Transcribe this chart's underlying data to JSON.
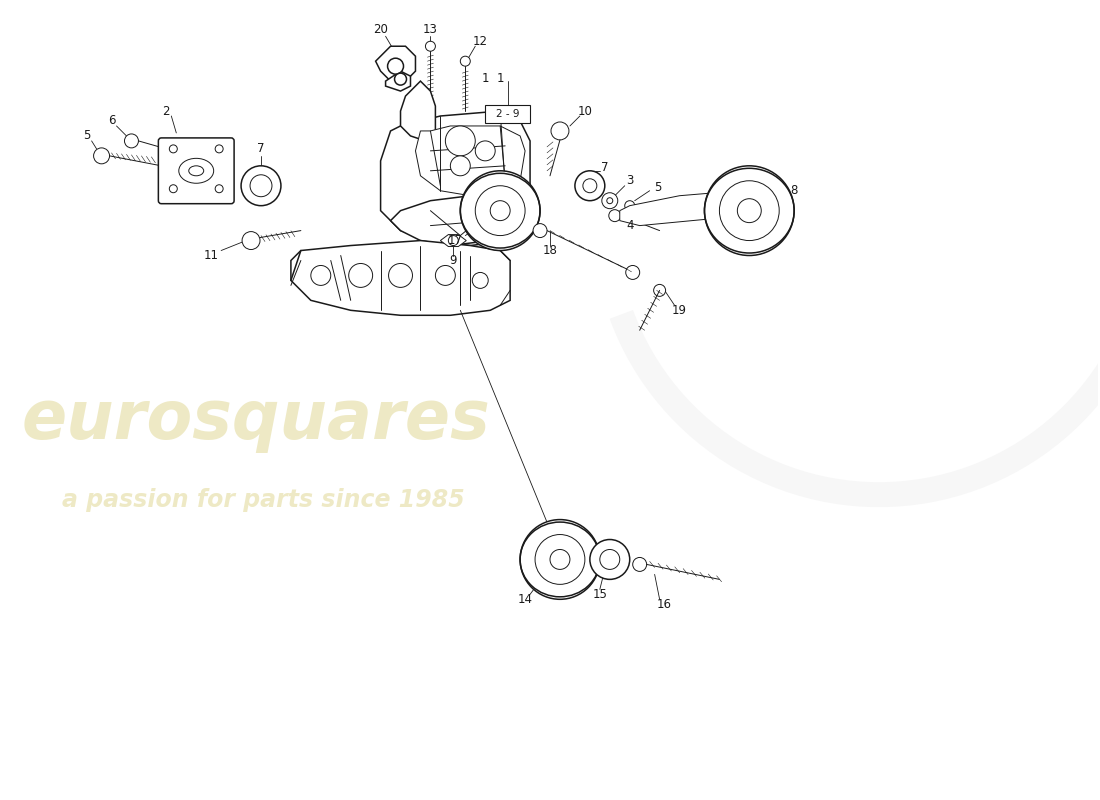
{
  "background_color": "#ffffff",
  "line_color": "#1a1a1a",
  "watermark_color": "#c8b840",
  "watermark_alpha": 0.3,
  "fig_width": 11.0,
  "fig_height": 8.0,
  "dpi": 100,
  "lw_main": 1.1,
  "lw_thin": 0.7,
  "lw_callout": 0.6,
  "label_fontsize": 8.5
}
